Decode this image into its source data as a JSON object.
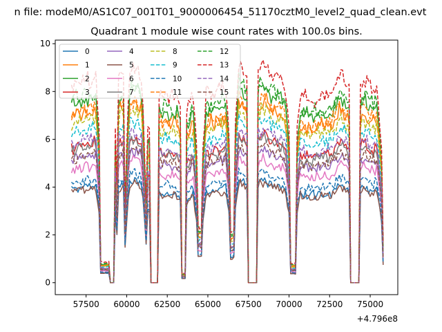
{
  "chart_data": {
    "type": "line",
    "suptitle": "n file: modeM0/AS1C07_001T01_9000006454_51170cztM0_level2_quad_clean.evt",
    "title": "Quadrant 1 module wise count rates with 100.0s bins.",
    "xlabel": "",
    "ylabel": "",
    "offset_text": "+4.796e8",
    "xlim": [
      55600,
      76700
    ],
    "ylim": [
      -0.5,
      10.15
    ],
    "xticks": [
      57500,
      60000,
      62500,
      65000,
      67500,
      70000,
      72500,
      75000
    ],
    "xtick_labels": [
      "57500",
      "60000",
      "62500",
      "65000",
      "67500",
      "70000",
      "72500",
      "75000"
    ],
    "yticks": [
      0,
      2,
      4,
      6,
      8,
      10
    ],
    "ytick_labels": [
      "0",
      "2",
      "4",
      "6",
      "8",
      "10"
    ],
    "grid": false,
    "legend_position": "top-left",
    "legend_columns": 4,
    "x_range": [
      56600,
      75800
    ],
    "bin_step": 100,
    "dips": [
      [
        58400,
        59100,
        0.1,
        0.6
      ],
      [
        59000,
        59250,
        0.0,
        0.9
      ],
      [
        59500,
        59850,
        1.6,
        0.25
      ],
      [
        61250,
        61500,
        0.8,
        0.3
      ],
      [
        61500,
        61900,
        0.0,
        1.0
      ],
      [
        63400,
        63600,
        0.05,
        0.9
      ],
      [
        64400,
        64600,
        0.3,
        0.6
      ],
      [
        66400,
        66600,
        0.25,
        0.6
      ],
      [
        67500,
        68000,
        0.0,
        1.0
      ],
      [
        70050,
        70400,
        0.1,
        0.7
      ],
      [
        73800,
        74300,
        0.0,
        1.0
      ],
      [
        75750,
        75850,
        0.2,
        0.6
      ]
    ],
    "series": [
      {
        "name": "0",
        "level": 3.9,
        "color": "#1f77b4",
        "dash": "solid"
      },
      {
        "name": "1",
        "level": 6.9,
        "color": "#ff7f0e",
        "dash": "solid"
      },
      {
        "name": "2",
        "level": 7.4,
        "color": "#2ca02c",
        "dash": "solid"
      },
      {
        "name": "3",
        "level": 5.6,
        "color": "#d62728",
        "dash": "solid"
      },
      {
        "name": "4",
        "level": 5.1,
        "color": "#9467bd",
        "dash": "solid"
      },
      {
        "name": "5",
        "level": 3.8,
        "color": "#8c564b",
        "dash": "solid"
      },
      {
        "name": "6",
        "level": 4.7,
        "color": "#e377c2",
        "dash": "solid"
      },
      {
        "name": "7",
        "level": 5.5,
        "color": "#7f7f7f",
        "dash": "solid"
      },
      {
        "name": "8",
        "level": 6.6,
        "color": "#bcbd22",
        "dash": "dashed"
      },
      {
        "name": "9",
        "level": 6.2,
        "color": "#17becf",
        "dash": "dashed"
      },
      {
        "name": "10",
        "level": 4.2,
        "color": "#1f77b4",
        "dash": "dashed"
      },
      {
        "name": "11",
        "level": 7.0,
        "color": "#ff7f0e",
        "dash": "dashed"
      },
      {
        "name": "12",
        "level": 7.6,
        "color": "#2ca02c",
        "dash": "dashed"
      },
      {
        "name": "13",
        "level": 8.2,
        "color": "#d62728",
        "dash": "dashed"
      },
      {
        "name": "14",
        "level": 5.8,
        "color": "#9467bd",
        "dash": "dashed"
      },
      {
        "name": "15",
        "level": 5.2,
        "color": "#8c564b",
        "dash": "dashed"
      }
    ]
  }
}
